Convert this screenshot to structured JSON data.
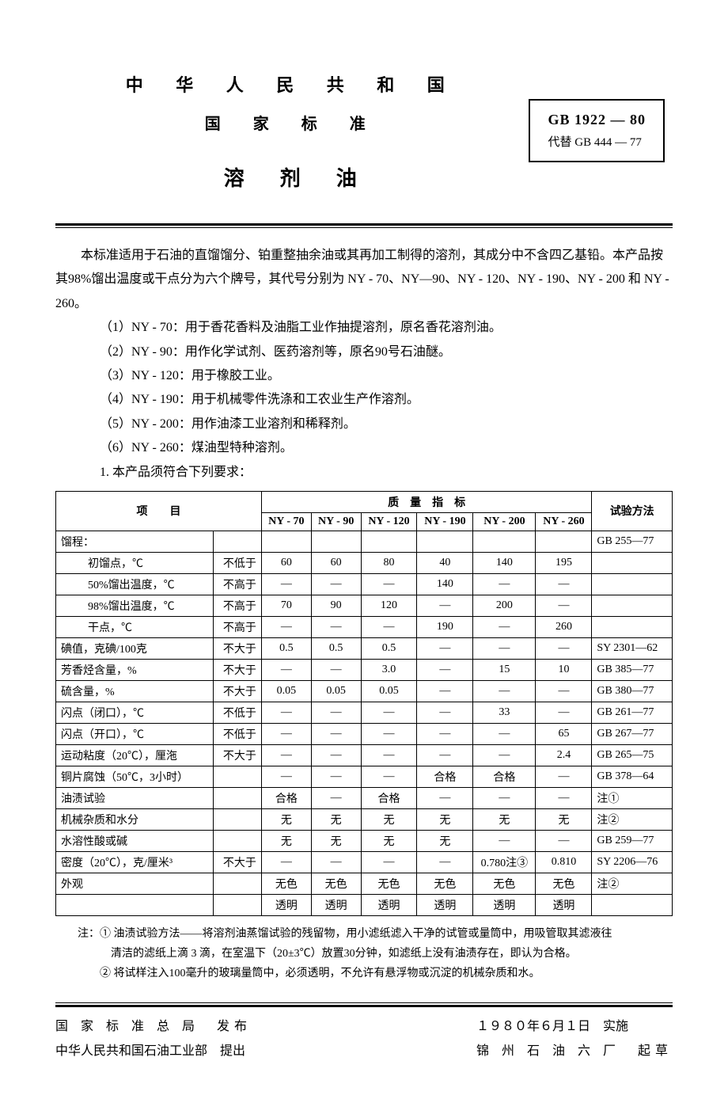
{
  "header": {
    "country": "中 华 人 民 共 和 国",
    "natstd": "国 家 标 准",
    "doctitle": "溶剂油",
    "id_main": "GB 1922 — 80",
    "id_sub": "代替 GB 444 — 77"
  },
  "paragraphs": {
    "p1": "本标准适用于石油的直馏馏分、铂重整抽余油或其再加工制得的溶剂，其成分中不含四乙基铅。本产品按其98%馏出温度或干点分为六个牌号，其代号分别为 NY - 70、NY—90、NY - 120、NY - 190、NY - 200 和 NY - 260。",
    "i1": "（1）NY - 70：用于香花香料及油脂工业作抽提溶剂，原名香花溶剂油。",
    "i2": "（2）NY - 90：用作化学试剂、医药溶剂等，原名90号石油醚。",
    "i3": "（3）NY - 120：用于橡胶工业。",
    "i4": "（4）NY - 190：用于机械零件洗涤和工农业生产作溶剂。",
    "i5": "（5）NY - 200：用作油漆工业溶剂和稀释剂。",
    "i6": "（6）NY - 260：煤油型特种溶剂。",
    "req": "1. 本产品须符合下列要求："
  },
  "table": {
    "h_item": "项　　目",
    "h_quality": "质　量　指　标",
    "h_method": "试验方法",
    "cols": [
      "NY - 70",
      "NY - 90",
      "NY - 120",
      "NY - 190",
      "NY - 200",
      "NY - 260"
    ],
    "rows": [
      {
        "label": "馏程：",
        "qual": "",
        "v": [
          "",
          "",
          "",
          "",
          "",
          ""
        ],
        "method": "GB 255—77",
        "cls": "lcol"
      },
      {
        "label": "初馏点，℃",
        "qual": "不低于",
        "v": [
          "60",
          "60",
          "80",
          "40",
          "140",
          "195"
        ],
        "method": "",
        "cls": "indent1"
      },
      {
        "label": "50%馏出温度，℃",
        "qual": "不高于",
        "v": [
          "—",
          "—",
          "—",
          "140",
          "—",
          "—"
        ],
        "method": "",
        "cls": "indent1"
      },
      {
        "label": "98%馏出温度，℃",
        "qual": "不高于",
        "v": [
          "70",
          "90",
          "120",
          "—",
          "200",
          "—"
        ],
        "method": "",
        "cls": "indent1"
      },
      {
        "label": "干点，℃",
        "qual": "不高于",
        "v": [
          "—",
          "—",
          "—",
          "190",
          "—",
          "260"
        ],
        "method": "",
        "cls": "indent1"
      },
      {
        "label": "碘值，克碘/100克",
        "qual": "不大于",
        "v": [
          "0.5",
          "0.5",
          "0.5",
          "—",
          "—",
          "—"
        ],
        "method": "SY 2301—62",
        "cls": "lcol"
      },
      {
        "label": "芳香烃含量，%",
        "qual": "不大于",
        "v": [
          "—",
          "—",
          "3.0",
          "—",
          "15",
          "10"
        ],
        "method": "GB 385—77",
        "cls": "lcol"
      },
      {
        "label": "硫含量，%",
        "qual": "不大于",
        "v": [
          "0.05",
          "0.05",
          "0.05",
          "—",
          "—",
          "—"
        ],
        "method": "GB 380—77",
        "cls": "lcol"
      },
      {
        "label": "闪点（闭口），℃",
        "qual": "不低于",
        "v": [
          "—",
          "—",
          "—",
          "—",
          "33",
          "—"
        ],
        "method": "GB 261—77",
        "cls": "lcol"
      },
      {
        "label": "闪点（开口），℃",
        "qual": "不低于",
        "v": [
          "—",
          "—",
          "—",
          "—",
          "—",
          "65"
        ],
        "method": "GB 267—77",
        "cls": "lcol"
      },
      {
        "label": "运动粘度（20℃），厘沲",
        "qual": "不大于",
        "v": [
          "—",
          "—",
          "—",
          "—",
          "—",
          "2.4"
        ],
        "method": "GB 265—75",
        "cls": "lcol"
      },
      {
        "label": "铜片腐蚀（50℃，3小时）",
        "qual": "",
        "v": [
          "—",
          "—",
          "—",
          "合格",
          "合格",
          "—"
        ],
        "method": "GB 378—64",
        "cls": "lcol"
      },
      {
        "label": "油渍试验",
        "qual": "",
        "v": [
          "合格",
          "—",
          "合格",
          "—",
          "—",
          "—"
        ],
        "method": "注①",
        "cls": "lcol"
      },
      {
        "label": "机械杂质和水分",
        "qual": "",
        "v": [
          "无",
          "无",
          "无",
          "无",
          "无",
          "无"
        ],
        "method": "注②",
        "cls": "lcol"
      },
      {
        "label": "水溶性酸或碱",
        "qual": "",
        "v": [
          "无",
          "无",
          "无",
          "无",
          "—",
          "—"
        ],
        "method": "GB 259—77",
        "cls": "lcol"
      },
      {
        "label": "密度（20℃），克/厘米³",
        "qual": "不大于",
        "v": [
          "—",
          "—",
          "—",
          "—",
          "0.780注③",
          "0.810"
        ],
        "method": "SY 2206—76",
        "cls": "lcol"
      },
      {
        "label": "外观",
        "qual": "",
        "v": [
          "无色",
          "无色",
          "无色",
          "无色",
          "无色",
          "无色"
        ],
        "method": "注②",
        "cls": "lcol"
      },
      {
        "label": "",
        "qual": "",
        "v": [
          "透明",
          "透明",
          "透明",
          "透明",
          "透明",
          "透明"
        ],
        "method": "",
        "cls": "lcol"
      }
    ]
  },
  "notes": {
    "n1a": "注：① 油渍试验方法——将溶剂油蒸馏试验的残留物，用小滤纸滤入干净的试管或量筒中，用吸管取其滤液往",
    "n1b": "清洁的滤纸上滴 3 滴，在室温下（20±3℃）放置30分钟，如滤纸上没有油渍存在，即认为合格。",
    "n2": "② 将试样注入100毫升的玻璃量筒中，必须透明，不允许有悬浮物或沉淀的机械杂质和水。"
  },
  "footer": {
    "l1": "国 家 标 准 总 局　发布",
    "l2": "中华人民共和国石油工业部　提出",
    "r1": "１９８０年６月１日　实施",
    "r2": "锦 州 石 油 六 厂　起草"
  }
}
